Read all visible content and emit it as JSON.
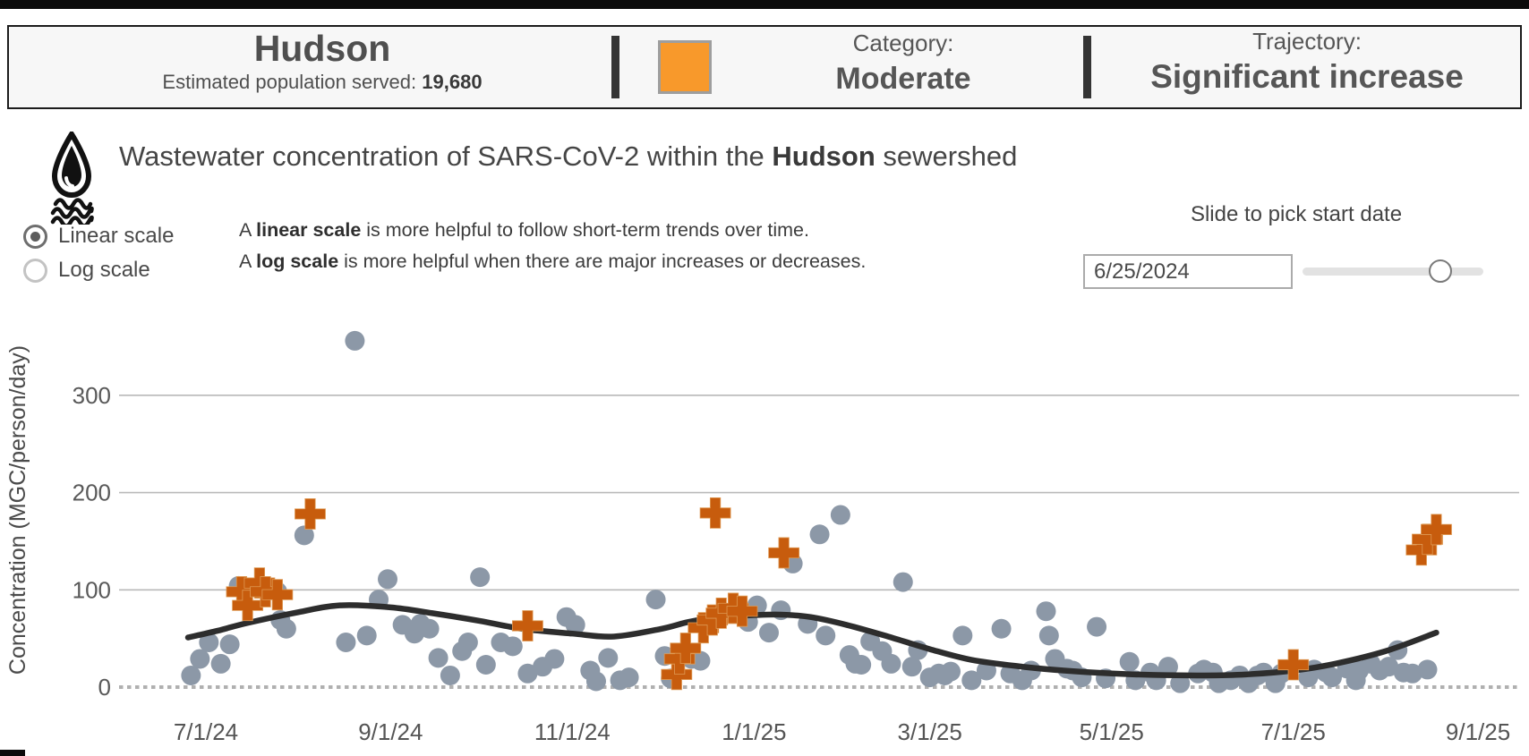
{
  "header": {
    "site_name": "Hudson",
    "population_label": "Estimated population served: ",
    "population_value": "19,680",
    "category_label": "Category:",
    "category_value": "Moderate",
    "category_color": "#F8992B",
    "trajectory_label": "Trajectory:",
    "trajectory_value": "Significant increase"
  },
  "title": {
    "pre": "Wastewater concentration of SARS-CoV-2 within the ",
    "bold": "Hudson",
    "post": " sewershed"
  },
  "scale_toggle": {
    "linear_label": "Linear scale",
    "log_label": "Log scale",
    "selected": "linear"
  },
  "explanation": {
    "line1_pre": "A ",
    "line1_bold": "linear scale",
    "line1_post": " is more helpful to follow short-term trends over time.",
    "line2_pre": "A ",
    "line2_bold": "log scale",
    "line2_post": " is more helpful when there are major increases or decreases."
  },
  "date_picker": {
    "label": "Slide to pick start date",
    "value": "6/25/2024",
    "slider_pct": 76
  },
  "chart_data": {
    "type": "scatter",
    "title": "",
    "xlabel": "",
    "ylabel": "Concentration (MGC/person/day)",
    "ylim": [
      0,
      370
    ],
    "y_ticks": [
      0,
      100,
      200,
      300
    ],
    "x_tick_labels": [
      "7/1/24",
      "9/1/24",
      "11/1/24",
      "1/1/25",
      "3/1/25",
      "5/1/25",
      "7/1/25",
      "9/1/25"
    ],
    "grid": "horizontal",
    "legend": "none",
    "colors": {
      "sample": "#8C98A7",
      "flagged": "#C75C0D",
      "trend": "#2D2D2D"
    },
    "series": [
      {
        "name": "wastewater-samples",
        "marker": "circle",
        "color": "#8C98A7",
        "points": [
          [
            "6/26/24",
            12
          ],
          [
            "6/29/24",
            29
          ],
          [
            "7/2/24",
            46
          ],
          [
            "7/6/24",
            24
          ],
          [
            "7/9/24",
            44
          ],
          [
            "7/12/24",
            104
          ],
          [
            "7/22/24",
            102
          ],
          [
            "7/25/24",
            98
          ],
          [
            "7/26/24",
            69
          ],
          [
            "7/28/24",
            60
          ],
          [
            "8/3/24",
            156
          ],
          [
            "8/17/24",
            46
          ],
          [
            "8/20/24",
            356
          ],
          [
            "8/24/24",
            53
          ],
          [
            "8/28/24",
            90
          ],
          [
            "8/31/24",
            111
          ],
          [
            "9/5/24",
            64
          ],
          [
            "9/9/24",
            55
          ],
          [
            "9/11/24",
            65
          ],
          [
            "9/14/24",
            60
          ],
          [
            "9/17/24",
            30
          ],
          [
            "9/21/24",
            12
          ],
          [
            "9/25/24",
            37
          ],
          [
            "9/27/24",
            46
          ],
          [
            "10/1/24",
            113
          ],
          [
            "10/3/24",
            23
          ],
          [
            "10/8/24",
            46
          ],
          [
            "10/12/24",
            42
          ],
          [
            "10/17/24",
            14
          ],
          [
            "10/22/24",
            21
          ],
          [
            "10/26/24",
            29
          ],
          [
            "10/30/24",
            72
          ],
          [
            "11/2/24",
            64
          ],
          [
            "11/7/24",
            17
          ],
          [
            "11/9/24",
            6
          ],
          [
            "11/13/24",
            30
          ],
          [
            "11/17/24",
            7
          ],
          [
            "11/20/24",
            10
          ],
          [
            "11/29/24",
            90
          ],
          [
            "12/2/24",
            32
          ],
          [
            "12/4/24",
            9
          ],
          [
            "12/11/24",
            29
          ],
          [
            "12/14/24",
            27
          ],
          [
            "12/29/24",
            76
          ],
          [
            "12/30/24",
            67
          ],
          [
            "1/2/25",
            84
          ],
          [
            "1/6/25",
            56
          ],
          [
            "1/10/25",
            79
          ],
          [
            "1/14/25",
            127
          ],
          [
            "1/19/25",
            65
          ],
          [
            "1/23/25",
            157
          ],
          [
            "1/25/25",
            53
          ],
          [
            "1/30/25",
            177
          ],
          [
            "2/2/25",
            33
          ],
          [
            "2/4/25",
            24
          ],
          [
            "2/6/25",
            23
          ],
          [
            "2/9/25",
            47
          ],
          [
            "2/13/25",
            37
          ],
          [
            "2/16/25",
            24
          ],
          [
            "2/20/25",
            108
          ],
          [
            "2/23/25",
            21
          ],
          [
            "2/25/25",
            38
          ],
          [
            "3/1/25",
            10
          ],
          [
            "3/4/25",
            14
          ],
          [
            "3/6/25",
            12
          ],
          [
            "3/8/25",
            16
          ],
          [
            "3/12/25",
            53
          ],
          [
            "3/15/25",
            7
          ],
          [
            "3/20/25",
            17
          ],
          [
            "3/25/25",
            60
          ],
          [
            "3/28/25",
            14
          ],
          [
            "4/1/25",
            7
          ],
          [
            "4/4/25",
            17
          ],
          [
            "4/9/25",
            78
          ],
          [
            "4/10/25",
            53
          ],
          [
            "4/12/25",
            29
          ],
          [
            "4/16/25",
            19
          ],
          [
            "4/18/25",
            17
          ],
          [
            "4/21/25",
            10
          ],
          [
            "4/26/25",
            62
          ],
          [
            "4/29/25",
            9
          ],
          [
            "5/7/25",
            26
          ],
          [
            "5/9/25",
            7
          ],
          [
            "5/14/25",
            15
          ],
          [
            "5/16/25",
            7
          ],
          [
            "5/20/25",
            21
          ],
          [
            "5/24/25",
            4
          ],
          [
            "5/30/25",
            14
          ],
          [
            "6/1/25",
            18
          ],
          [
            "6/4/25",
            15
          ],
          [
            "6/6/25",
            4
          ],
          [
            "6/10/25",
            7
          ],
          [
            "6/13/25",
            12
          ],
          [
            "6/16/25",
            4
          ],
          [
            "6/19/25",
            12
          ],
          [
            "6/21/25",
            15
          ],
          [
            "6/25/25",
            4
          ],
          [
            "6/27/25",
            14
          ],
          [
            "7/6/25",
            10
          ],
          [
            "7/8/25",
            18
          ],
          [
            "7/12/25",
            15
          ],
          [
            "7/14/25",
            10
          ],
          [
            "7/19/25",
            19
          ],
          [
            "7/22/25",
            7
          ],
          [
            "7/23/25",
            17
          ],
          [
            "7/27/25",
            24
          ],
          [
            "7/30/25",
            17
          ],
          [
            "8/2/25",
            21
          ],
          [
            "8/5/25",
            38
          ],
          [
            "8/7/25",
            15
          ],
          [
            "8/10/25",
            14
          ],
          [
            "8/15/25",
            18
          ]
        ]
      },
      {
        "name": "flagged-samples",
        "marker": "plus",
        "color": "#C75C0D",
        "points": [
          [
            "7/13/24",
            98
          ],
          [
            "7/15/24",
            84
          ],
          [
            "7/19/24",
            107
          ],
          [
            "7/21/24",
            98
          ],
          [
            "7/25/24",
            95
          ],
          [
            "8/5/24",
            178
          ],
          [
            "10/17/24",
            63
          ],
          [
            "12/6/24",
            13
          ],
          [
            "12/7/24",
            29
          ],
          [
            "12/9/24",
            40
          ],
          [
            "12/15/24",
            61
          ],
          [
            "12/18/24",
            69
          ],
          [
            "12/19/24",
            179
          ],
          [
            "12/21/24",
            76
          ],
          [
            "12/25/24",
            81
          ],
          [
            "12/28/24",
            78
          ],
          [
            "1/11/25",
            138
          ],
          [
            "7/1/25",
            23
          ],
          [
            "8/13/25",
            141
          ],
          [
            "8/15/25",
            152
          ],
          [
            "8/18/25",
            162
          ]
        ]
      },
      {
        "name": "smoothed-trend",
        "marker": "line",
        "color": "#2D2D2D",
        "points": [
          [
            "6/25/24",
            51
          ],
          [
            "7/5/24",
            58
          ],
          [
            "7/15/24",
            66
          ],
          [
            "8/1/24",
            77
          ],
          [
            "8/15/24",
            84
          ],
          [
            "9/1/24",
            82
          ],
          [
            "9/15/24",
            76
          ],
          [
            "10/1/24",
            68
          ],
          [
            "10/15/24",
            60
          ],
          [
            "11/1/24",
            55
          ],
          [
            "11/15/24",
            52
          ],
          [
            "12/1/24",
            60
          ],
          [
            "12/10/24",
            67
          ],
          [
            "12/20/24",
            72
          ],
          [
            "1/1/25",
            74
          ],
          [
            "1/10/25",
            74.5
          ],
          [
            "1/20/25",
            72
          ],
          [
            "2/1/25",
            64
          ],
          [
            "2/15/25",
            52
          ],
          [
            "3/1/25",
            39
          ],
          [
            "3/15/25",
            28
          ],
          [
            "4/1/25",
            21
          ],
          [
            "4/15/25",
            17
          ],
          [
            "5/1/25",
            14
          ],
          [
            "5/15/25",
            12.5
          ],
          [
            "6/1/25",
            12
          ],
          [
            "6/15/25",
            13
          ],
          [
            "7/1/25",
            17
          ],
          [
            "7/15/25",
            24
          ],
          [
            "8/1/25",
            37
          ],
          [
            "8/18/25",
            56
          ]
        ]
      }
    ]
  }
}
